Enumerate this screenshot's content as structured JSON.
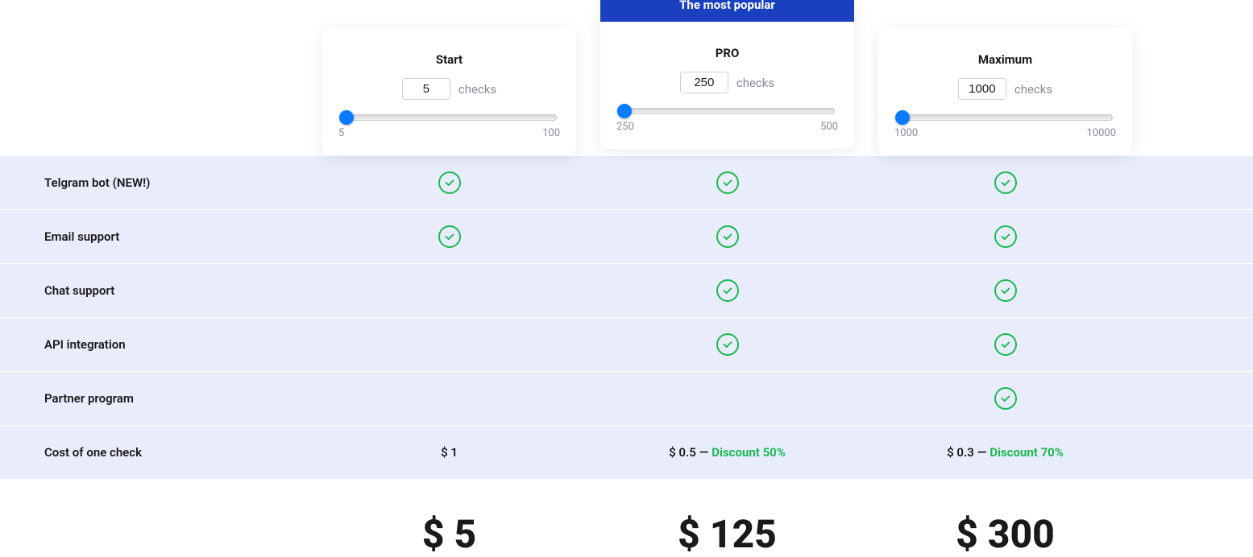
{
  "popular_label": "The most popular",
  "checks_unit": "checks",
  "plans": [
    {
      "name": "Start",
      "checks_value": "5",
      "slider_min": "5",
      "slider_max": "100",
      "price": "$ 5",
      "cost_per_check": "$ 1",
      "discount": ""
    },
    {
      "name": "PRO",
      "popular": true,
      "checks_value": "250",
      "slider_min": "250",
      "slider_max": "500",
      "price": "$ 125",
      "cost_per_check": "$ 0.5",
      "discount": "Discount 50%"
    },
    {
      "name": "Maximum",
      "checks_value": "1000",
      "slider_min": "1000",
      "slider_max": "10000",
      "price": "$ 300",
      "cost_per_check": "$ 0.3",
      "discount": "Discount 70%"
    }
  ],
  "features": [
    {
      "label": "Telgram bot (NEW!)",
      "cells": [
        true,
        true,
        true
      ]
    },
    {
      "label": "Email support",
      "cells": [
        true,
        true,
        true
      ]
    },
    {
      "label": "Chat support",
      "cells": [
        false,
        true,
        true
      ]
    },
    {
      "label": "API integration",
      "cells": [
        false,
        true,
        true
      ]
    },
    {
      "label": "Partner program",
      "cells": [
        false,
        false,
        true
      ]
    }
  ],
  "cost_row_label": "Cost of one check",
  "dash": " — ",
  "colors": {
    "ribbon_bg": "#1a3fbf",
    "row_bg": "#e8ecfb",
    "check_green": "#1db954",
    "slider_thumb": "#0a7aff",
    "muted_text": "#8a8a9a"
  }
}
